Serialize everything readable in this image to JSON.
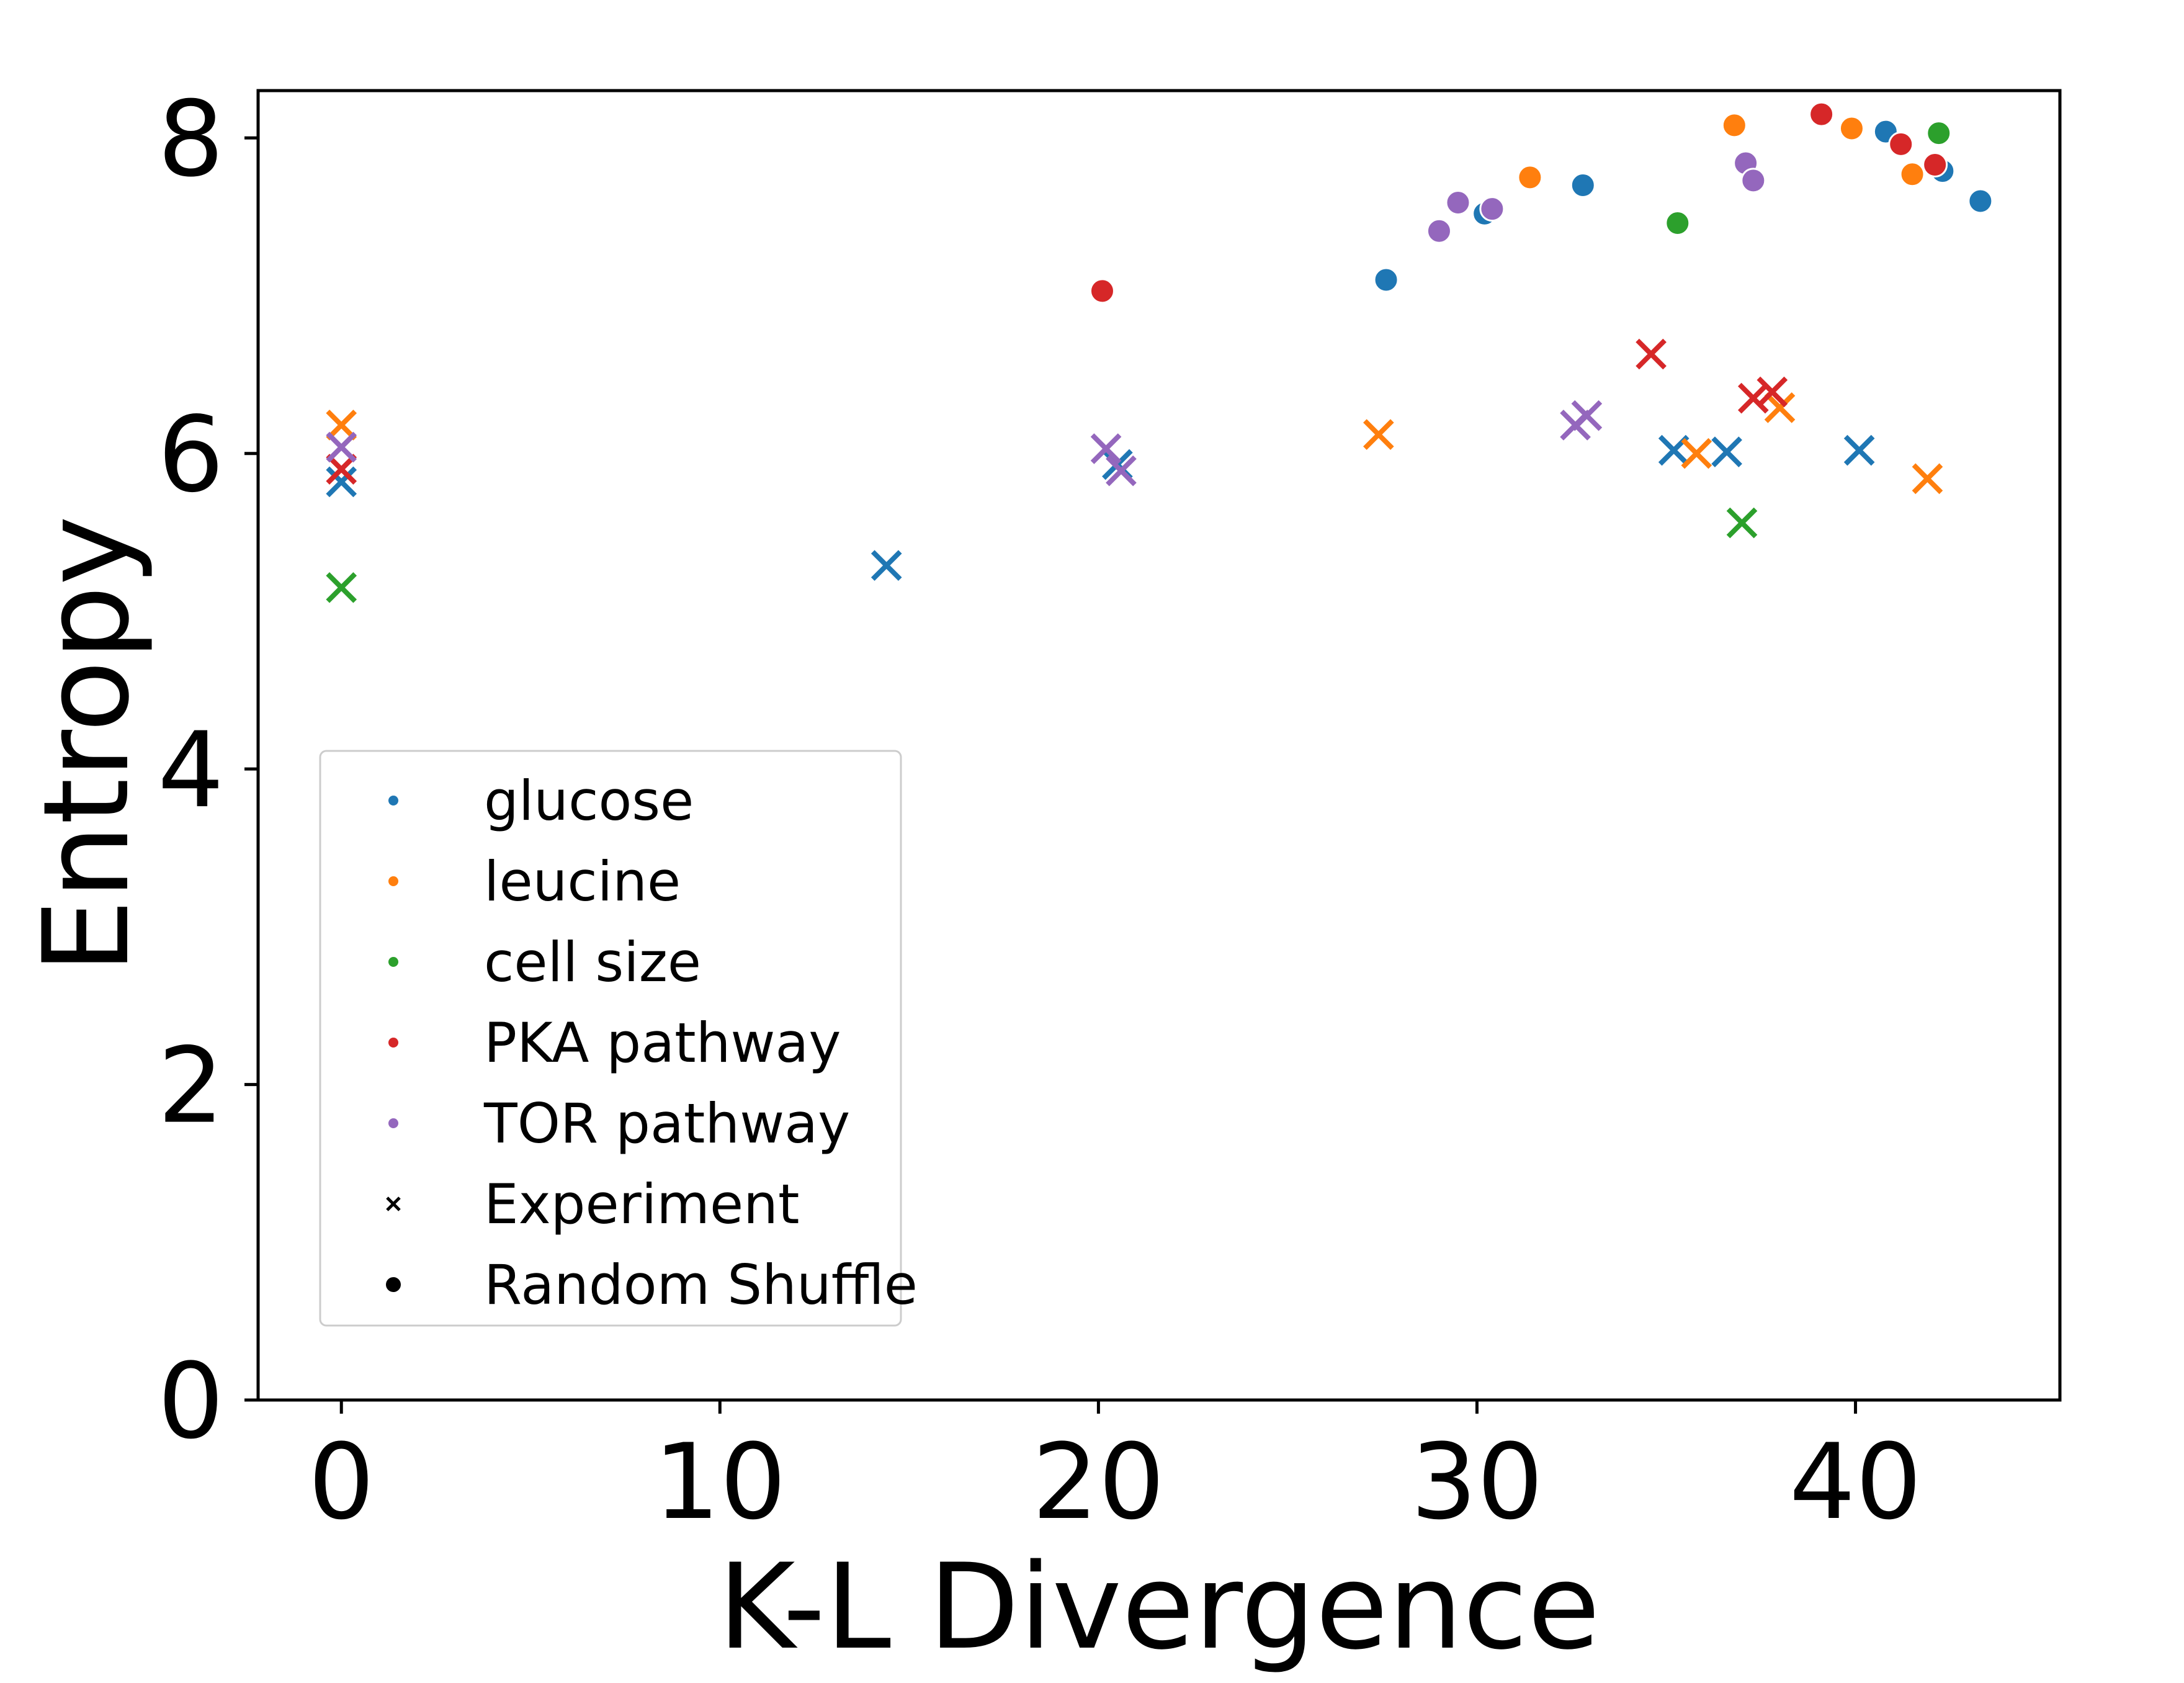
{
  "chart_data": {
    "type": "scatter",
    "xlabel": "K-L Divergence",
    "ylabel": "Entropy",
    "xlim": [
      -2.2,
      45.4
    ],
    "ylim": [
      0,
      8.3
    ],
    "xticks": [
      "0",
      "10",
      "20",
      "30",
      "40"
    ],
    "yticks": [
      "0",
      "2",
      "4",
      "6",
      "8"
    ],
    "legend": {
      "placement": "lower-left"
    },
    "marker_types": [
      {
        "name": "Experiment",
        "marker": "x"
      },
      {
        "name": "Random Shuffle",
        "marker": "o"
      }
    ],
    "series": [
      {
        "name": "glucose",
        "color": "#1f77b4",
        "experiment": [
          [
            0,
            5.82
          ],
          [
            14.4,
            5.29
          ],
          [
            20.5,
            5.93
          ],
          [
            35.2,
            6.02
          ],
          [
            36.6,
            6.01
          ],
          [
            40.1,
            6.02
          ]
        ],
        "random_shuffle": [
          [
            27.6,
            7.1
          ],
          [
            30.2,
            7.52
          ],
          [
            32.8,
            7.7
          ],
          [
            40.8,
            8.04
          ],
          [
            42.3,
            7.79
          ],
          [
            43.3,
            7.6
          ]
        ]
      },
      {
        "name": "leucine",
        "color": "#ff7f0e",
        "experiment": [
          [
            0,
            6.18
          ],
          [
            27.4,
            6.12
          ],
          [
            35.8,
            6.0
          ],
          [
            38.0,
            6.29
          ],
          [
            41.9,
            5.84
          ]
        ],
        "random_shuffle": [
          [
            31.4,
            7.75
          ],
          [
            36.8,
            8.08
          ],
          [
            39.9,
            8.06
          ],
          [
            41.5,
            7.77
          ]
        ]
      },
      {
        "name": "cell size",
        "color": "#2ca02c",
        "experiment": [
          [
            0,
            5.15
          ],
          [
            37.0,
            5.56
          ]
        ],
        "random_shuffle": [
          [
            35.3,
            7.46
          ],
          [
            42.2,
            8.03
          ]
        ]
      },
      {
        "name": "PKA pathway",
        "color": "#d62728",
        "experiment": [
          [
            0,
            5.9
          ],
          [
            34.6,
            6.63
          ],
          [
            37.3,
            6.35
          ],
          [
            37.8,
            6.39
          ]
        ],
        "random_shuffle": [
          [
            20.1,
            7.03
          ],
          [
            39.1,
            8.15
          ],
          [
            41.2,
            7.96
          ],
          [
            42.1,
            7.83
          ]
        ]
      },
      {
        "name": "TOR pathway",
        "color": "#9467bd",
        "experiment": [
          [
            0,
            6.04
          ],
          [
            20.2,
            6.03
          ],
          [
            20.6,
            5.89
          ],
          [
            32.6,
            6.18
          ],
          [
            32.9,
            6.24
          ]
        ],
        "random_shuffle": [
          [
            29.0,
            7.41
          ],
          [
            29.5,
            7.59
          ],
          [
            30.4,
            7.55
          ],
          [
            37.1,
            7.84
          ],
          [
            37.3,
            7.73
          ]
        ]
      }
    ]
  }
}
